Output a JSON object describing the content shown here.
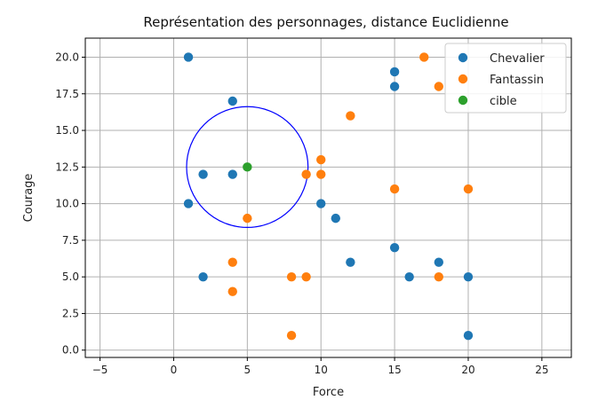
{
  "chart_data": {
    "type": "scatter",
    "title": "Représentation des personnages, distance Euclidienne",
    "xlabel": "Force",
    "ylabel": "Courage",
    "xlim": [
      -6,
      27
    ],
    "ylim": [
      -0.5,
      21.3
    ],
    "x_ticks": [
      -5,
      0,
      5,
      10,
      15,
      20,
      25
    ],
    "y_ticks": [
      0.0,
      2.5,
      5.0,
      7.5,
      10.0,
      12.5,
      15.0,
      17.5,
      20.0
    ],
    "x_tick_labels": [
      "−5",
      "0",
      "5",
      "10",
      "15",
      "20",
      "25"
    ],
    "y_tick_labels": [
      "0.0",
      "2.5",
      "5.0",
      "7.5",
      "10.0",
      "12.5",
      "15.0",
      "17.5",
      "20.0"
    ],
    "grid": true,
    "legend_position": "top-right",
    "series": [
      {
        "name": "Chevalier",
        "color": "#1f77b4",
        "points": [
          {
            "x": 1,
            "y": 20
          },
          {
            "x": 4,
            "y": 17
          },
          {
            "x": 2,
            "y": 12
          },
          {
            "x": 4,
            "y": 12
          },
          {
            "x": 1,
            "y": 10
          },
          {
            "x": 2,
            "y": 5
          },
          {
            "x": 10,
            "y": 10
          },
          {
            "x": 11,
            "y": 9
          },
          {
            "x": 12,
            "y": 6
          },
          {
            "x": 15,
            "y": 19
          },
          {
            "x": 15,
            "y": 18
          },
          {
            "x": 15,
            "y": 7
          },
          {
            "x": 16,
            "y": 5
          },
          {
            "x": 18,
            "y": 6
          },
          {
            "x": 20,
            "y": 5
          },
          {
            "x": 20,
            "y": 1
          }
        ]
      },
      {
        "name": "Fantassin",
        "color": "#ff7f0e",
        "points": [
          {
            "x": 17,
            "y": 20
          },
          {
            "x": 18,
            "y": 18
          },
          {
            "x": 12,
            "y": 16
          },
          {
            "x": 10,
            "y": 13
          },
          {
            "x": 10,
            "y": 12
          },
          {
            "x": 9,
            "y": 12
          },
          {
            "x": 15,
            "y": 11
          },
          {
            "x": 20,
            "y": 11
          },
          {
            "x": 5,
            "y": 9
          },
          {
            "x": 4,
            "y": 6
          },
          {
            "x": 4,
            "y": 4
          },
          {
            "x": 8,
            "y": 5
          },
          {
            "x": 9,
            "y": 5
          },
          {
            "x": 18,
            "y": 5
          },
          {
            "x": 8,
            "y": 1
          }
        ]
      },
      {
        "name": "cible",
        "color": "#2ca02c",
        "points": [
          {
            "x": 5,
            "y": 12.5
          }
        ]
      }
    ],
    "annotations": [
      {
        "type": "circle",
        "center": {
          "x": 5,
          "y": 12.5
        },
        "radius": 4.123,
        "color": "#0000ff"
      }
    ]
  }
}
